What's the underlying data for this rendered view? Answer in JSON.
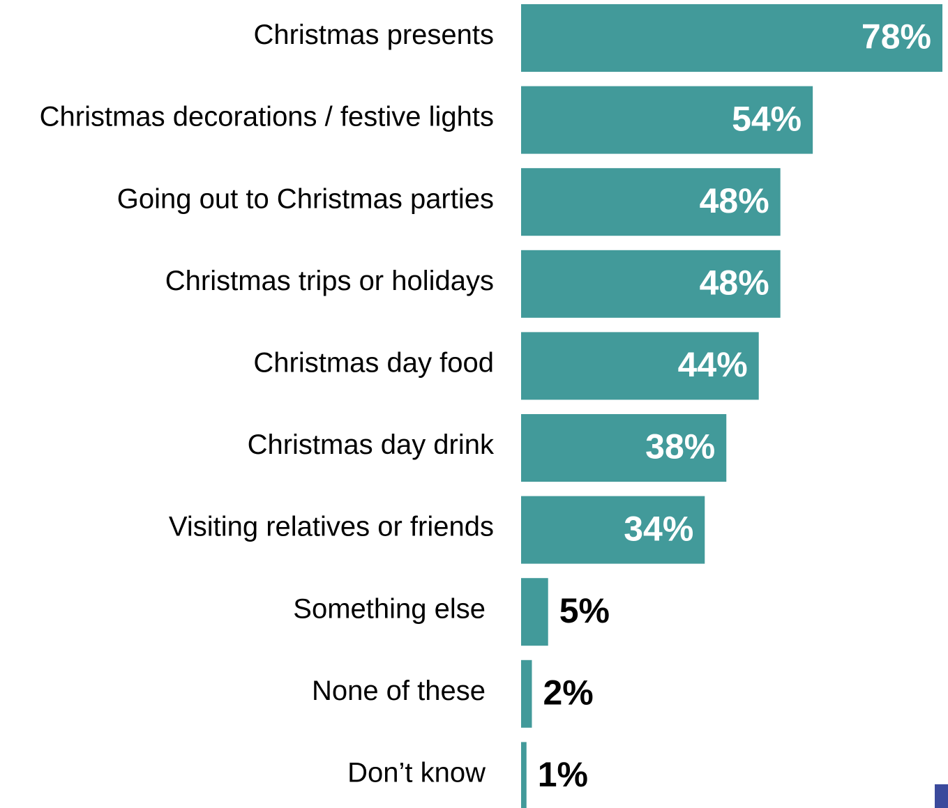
{
  "chart_data": {
    "type": "bar",
    "orientation": "horizontal",
    "title": "",
    "xlabel": "",
    "ylabel": "",
    "xlim": [
      0,
      78
    ],
    "grid": false,
    "legend": "none",
    "categories": [
      "Christmas presents",
      "Christmas decorations / festive lights",
      "Going out to Christmas parties",
      "Christmas trips or holidays",
      "Christmas day food",
      "Christmas day drink",
      "Visiting relatives or friends",
      "Something else",
      "None of these",
      "Don’t know"
    ],
    "values": [
      78,
      54,
      48,
      48,
      44,
      38,
      34,
      5,
      2,
      1
    ],
    "value_labels": [
      "78%",
      "54%",
      "48%",
      "48%",
      "44%",
      "38%",
      "34%",
      "5%",
      "2%",
      "1%"
    ]
  },
  "colors": {
    "bar": "#429A9A",
    "label_inside": "#ffffff",
    "label_outside": "#000000",
    "corner_marker": "#3B4A9C"
  }
}
